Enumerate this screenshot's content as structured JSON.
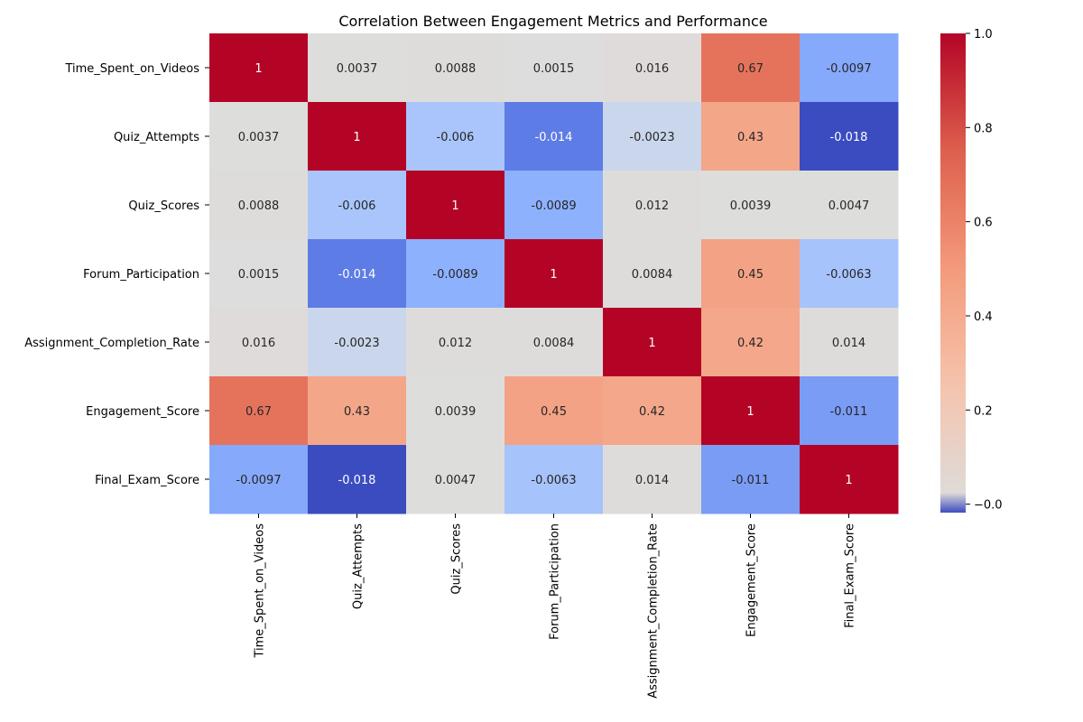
{
  "chart_data": {
    "type": "heatmap",
    "title": "Correlation Between Engagement Metrics and Performance",
    "xlabel": "",
    "ylabel": "",
    "rows": [
      "Time_Spent_on_Videos",
      "Quiz_Attempts",
      "Quiz_Scores",
      "Forum_Participation",
      "Assignment_Completion_Rate",
      "Engagement_Score",
      "Final_Exam_Score"
    ],
    "columns": [
      "Time_Spent_on_Videos",
      "Quiz_Attempts",
      "Quiz_Scores",
      "Forum_Participation",
      "Assignment_Completion_Rate",
      "Engagement_Score",
      "Final_Exam_Score"
    ],
    "values": [
      [
        1,
        0.0037,
        0.0088,
        0.0015,
        0.016,
        0.67,
        -0.0097
      ],
      [
        0.0037,
        1,
        -0.006,
        -0.014,
        -0.0023,
        0.43,
        -0.018
      ],
      [
        0.0088,
        -0.006,
        1,
        -0.0089,
        0.012,
        0.0039,
        0.0047
      ],
      [
        0.0015,
        -0.014,
        -0.0089,
        1,
        0.0084,
        0.45,
        -0.0063
      ],
      [
        0.016,
        -0.0023,
        0.012,
        0.0084,
        1,
        0.42,
        0.014
      ],
      [
        0.67,
        0.43,
        0.0039,
        0.45,
        0.42,
        1,
        -0.011
      ],
      [
        -0.0097,
        -0.018,
        0.0047,
        -0.0063,
        0.014,
        -0.011,
        1
      ]
    ],
    "value_labels": [
      [
        "1",
        "0.0037",
        "0.0088",
        "0.0015",
        "0.016",
        "0.67",
        "-0.0097"
      ],
      [
        "0.0037",
        "1",
        "-0.006",
        "-0.014",
        "-0.0023",
        "0.43",
        "-0.018"
      ],
      [
        "0.0088",
        "-0.006",
        "1",
        "-0.0089",
        "0.012",
        "0.0039",
        "0.0047"
      ],
      [
        "0.0015",
        "-0.014",
        "-0.0089",
        "1",
        "0.0084",
        "0.45",
        "-0.0063"
      ],
      [
        "0.016",
        "-0.0023",
        "0.012",
        "0.0084",
        "1",
        "0.42",
        "0.014"
      ],
      [
        "0.67",
        "0.43",
        "0.0039",
        "0.45",
        "0.42",
        "1",
        "-0.011"
      ],
      [
        "-0.0097",
        "-0.018",
        "0.0047",
        "-0.0063",
        "0.014",
        "-0.011",
        "1"
      ]
    ],
    "colormap": "coolwarm",
    "color_center": 0,
    "color_range": [
      -0.018,
      1
    ],
    "colorbar": {
      "ticks": [
        0.0,
        0.2,
        0.4,
        0.6,
        0.8,
        1.0
      ],
      "tick_labels": [
        "−0.0",
        "0.2",
        "0.4",
        "0.6",
        "0.8",
        "1.0"
      ]
    },
    "grid": false,
    "legend": "colorbar-right"
  }
}
